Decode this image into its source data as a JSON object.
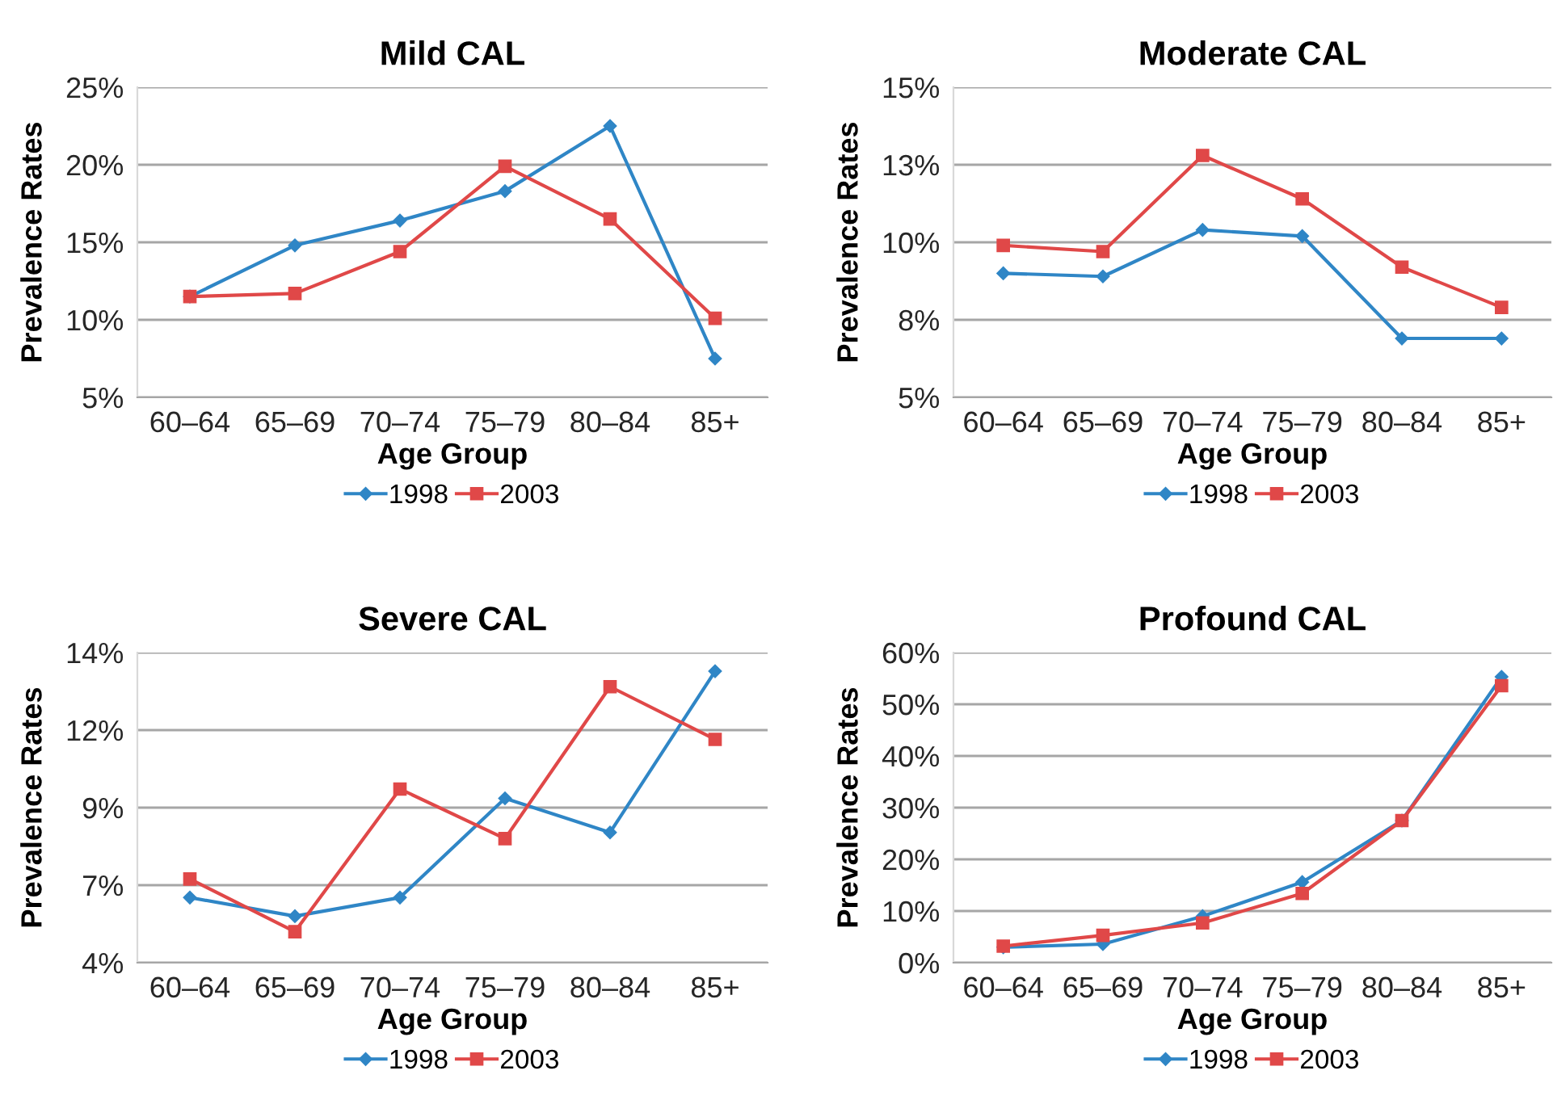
{
  "chart_data": [
    {
      "type": "line",
      "title": "Mild CAL",
      "xlabel": "Age Group",
      "ylabel": "Prevalence Rates",
      "categories": [
        "60–64",
        "65–69",
        "70–74",
        "75–79",
        "80–84",
        "85+"
      ],
      "series": [
        {
          "name": "1998",
          "color": "#2f86c6",
          "marker": "diamond",
          "values": [
            11.5,
            14.8,
            16.4,
            18.3,
            22.5,
            7.5
          ]
        },
        {
          "name": "2003",
          "color": "#e04848",
          "marker": "square",
          "values": [
            11.5,
            11.7,
            14.4,
            19.9,
            16.5,
            10.1
          ]
        }
      ],
      "ylim": [
        5,
        25
      ],
      "yticks": [
        {
          "value": 5,
          "label": "5%"
        },
        {
          "value": 10,
          "label": "10%"
        },
        {
          "value": 15,
          "label": "15%"
        },
        {
          "value": 20,
          "label": "20%"
        },
        {
          "value": 25,
          "label": "25%"
        }
      ],
      "grid": "y",
      "legend": "bottom",
      "line_style": "solid"
    },
    {
      "type": "line",
      "title": "Moderate CAL",
      "xlabel": "Age Group",
      "ylabel": "Prevalence Rates",
      "categories": [
        "60–64",
        "65–69",
        "70–74",
        "75–79",
        "80–84",
        "85+"
      ],
      "series": [
        {
          "name": "1998",
          "color": "#2f86c6",
          "marker": "diamond",
          "values": [
            9.0,
            8.9,
            10.4,
            10.2,
            6.9,
            6.9
          ]
        },
        {
          "name": "2003",
          "color": "#e04848",
          "marker": "square",
          "values": [
            9.9,
            9.7,
            12.8,
            11.4,
            9.2,
            7.9
          ]
        }
      ],
      "ylim": [
        5,
        15
      ],
      "yticks": [
        {
          "value": 5,
          "label": "5%"
        },
        {
          "value": 7.5,
          "label": "8%"
        },
        {
          "value": 10,
          "label": "10%"
        },
        {
          "value": 12.5,
          "label": "13%"
        },
        {
          "value": 15,
          "label": "15%"
        }
      ],
      "grid": "y",
      "legend": "bottom",
      "line_style": "solid"
    },
    {
      "type": "line",
      "title": "Severe CAL",
      "xlabel": "Age Group",
      "ylabel": "Prevalence Rates",
      "categories": [
        "60–64",
        "65–69",
        "70–74",
        "75–79",
        "80–84",
        "85+"
      ],
      "series": [
        {
          "name": "1998",
          "color": "#2f86c6",
          "marker": "diamond",
          "values": [
            6.1,
            5.5,
            6.1,
            9.3,
            8.2,
            13.4
          ]
        },
        {
          "name": "2003",
          "color": "#e04848",
          "marker": "square",
          "values": [
            6.7,
            5.0,
            9.6,
            8.0,
            12.9,
            11.2
          ]
        }
      ],
      "ylim": [
        4,
        14
      ],
      "yticks": [
        {
          "value": 4,
          "label": "4%"
        },
        {
          "value": 6.5,
          "label": "7%"
        },
        {
          "value": 9,
          "label": "9%"
        },
        {
          "value": 11.5,
          "label": "12%"
        },
        {
          "value": 14,
          "label": "14%"
        }
      ],
      "grid": "y",
      "legend": "bottom",
      "line_style": "solid"
    },
    {
      "type": "line",
      "title": "Profound CAL",
      "xlabel": "Age Group",
      "ylabel": "Prevalence Rates",
      "categories": [
        "60–64",
        "65–69",
        "70–74",
        "75–79",
        "80–84",
        "85+"
      ],
      "series": [
        {
          "name": "1998",
          "color": "#2f86c6",
          "marker": "diamond",
          "values": [
            3.0,
            3.6,
            9.0,
            15.6,
            27.5,
            55.3
          ]
        },
        {
          "name": "2003",
          "color": "#e04848",
          "marker": "square",
          "values": [
            3.2,
            5.3,
            7.7,
            13.4,
            27.5,
            53.6
          ]
        }
      ],
      "ylim": [
        0,
        60
      ],
      "yticks": [
        {
          "value": 0,
          "label": "0%"
        },
        {
          "value": 10,
          "label": "10%"
        },
        {
          "value": 20,
          "label": "20%"
        },
        {
          "value": 30,
          "label": "30%"
        },
        {
          "value": 40,
          "label": "40%"
        },
        {
          "value": 50,
          "label": "50%"
        },
        {
          "value": 60,
          "label": "60%"
        }
      ],
      "grid": "y",
      "legend": "bottom",
      "line_style": "solid"
    }
  ]
}
